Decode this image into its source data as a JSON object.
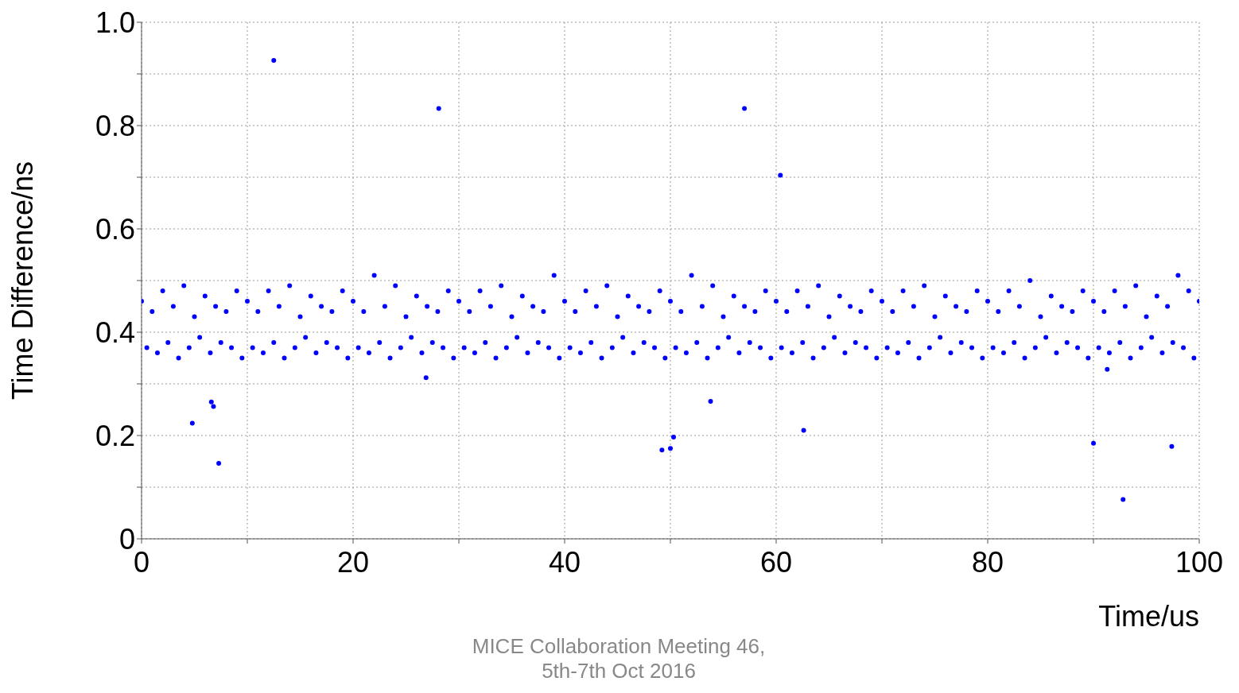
{
  "chart_data": {
    "type": "scatter",
    "xlabel": "Time/us",
    "ylabel": "Time Difference/ns",
    "annotations": [
      "MICE Collaboration Meeting 46, 5th-7th Oct 2016"
    ],
    "xlim": [
      0,
      100
    ],
    "ylim": [
      0,
      1.0
    ],
    "xticks": [
      0,
      {
        "value": 10,
        "label": null
      },
      20,
      {
        "value": 30,
        "label": null
      },
      40,
      {
        "value": 50,
        "label": null
      },
      60,
      {
        "value": 70,
        "label": null
      },
      80,
      {
        "value": 90,
        "label": null
      },
      100
    ],
    "yticks": [
      0,
      {
        "value": 0.1,
        "label": null
      },
      0.2,
      {
        "value": 0.3,
        "label": null
      },
      0.4,
      {
        "value": 0.5,
        "label": null
      },
      0.6,
      {
        "value": 0.7,
        "label": null
      },
      0.8,
      {
        "value": 0.9,
        "label": null
      },
      {
        "value": 1.0,
        "label": "1.0"
      }
    ],
    "grid": true,
    "marker": "circle",
    "series": [
      {
        "color": "#0000ff",
        "x": [
          0,
          1,
          2,
          3,
          4,
          5,
          6,
          7,
          8,
          9,
          10,
          11,
          12,
          13,
          14,
          15,
          16,
          17,
          18,
          19,
          20,
          21,
          22,
          23,
          24,
          25,
          26,
          27,
          28,
          29,
          30,
          31,
          32,
          33,
          34,
          35,
          36,
          37,
          38,
          39,
          40,
          41,
          42,
          43,
          44,
          45,
          46,
          47,
          48,
          49,
          50,
          51,
          52,
          53,
          54,
          55,
          56,
          57,
          58,
          59,
          60,
          61,
          62,
          63,
          64,
          65,
          66,
          67,
          68,
          69,
          70,
          71,
          72,
          73,
          74,
          75,
          76,
          77,
          78,
          79,
          80,
          81,
          82,
          83,
          84,
          85,
          86,
          87,
          88,
          89,
          90,
          91,
          92,
          93,
          94,
          95,
          96,
          97,
          98,
          99,
          100,
          0.5,
          1.5,
          2.5,
          3.5,
          4.5,
          5.5,
          6.5,
          7.5,
          8.5,
          9.5,
          10.5,
          11.5,
          12.5,
          13.5,
          14.5,
          15.5,
          16.5,
          17.5,
          18.5,
          19.5,
          20.5,
          21.5,
          22.5,
          23.5,
          24.5,
          25.5,
          26.5,
          27.5,
          28.5,
          29.5,
          30.5,
          31.5,
          32.5,
          33.5,
          34.5,
          35.5,
          36.5,
          37.5,
          38.5,
          39.5,
          40.5,
          41.5,
          42.5,
          43.5,
          44.5,
          45.5,
          46.5,
          47.5,
          48.5,
          49.5,
          50.5,
          51.5,
          52.5,
          53.5,
          54.5,
          55.5,
          56.5,
          57.5,
          58.5,
          59.5,
          60.5,
          61.5,
          62.5,
          63.5,
          64.5,
          65.5,
          66.5,
          67.5,
          68.5,
          69.5,
          70.5,
          71.5,
          72.5,
          73.5,
          74.5,
          75.5,
          76.5,
          77.5,
          78.5,
          79.5,
          80.5,
          81.5,
          82.5,
          83.5,
          84.5,
          85.5,
          86.5,
          87.5,
          88.5,
          89.5,
          90.5,
          91.5,
          92.5,
          93.5,
          94.5,
          95.5,
          96.5,
          97.5,
          98.5,
          99.5,
          12.5,
          28.1,
          57.0,
          60.4,
          4.8,
          6.6,
          6.8,
          7.3,
          26.9,
          49.2,
          50.0,
          50.3,
          53.8,
          62.6,
          90.0,
          91.3,
          92.8,
          97.4
        ],
        "values": [
          0.46,
          0.44,
          0.48,
          0.45,
          0.49,
          0.43,
          0.47,
          0.45,
          0.44,
          0.48,
          0.46,
          0.44,
          0.48,
          0.45,
          0.49,
          0.43,
          0.47,
          0.45,
          0.44,
          0.48,
          0.46,
          0.44,
          0.51,
          0.45,
          0.49,
          0.43,
          0.47,
          0.45,
          0.44,
          0.48,
          0.46,
          0.44,
          0.48,
          0.45,
          0.49,
          0.43,
          0.47,
          0.45,
          0.44,
          0.51,
          0.46,
          0.44,
          0.48,
          0.45,
          0.49,
          0.43,
          0.47,
          0.45,
          0.44,
          0.48,
          0.46,
          0.44,
          0.51,
          0.45,
          0.49,
          0.43,
          0.47,
          0.45,
          0.44,
          0.48,
          0.46,
          0.44,
          0.48,
          0.45,
          0.49,
          0.43,
          0.47,
          0.45,
          0.44,
          0.48,
          0.46,
          0.44,
          0.48,
          0.45,
          0.49,
          0.43,
          0.47,
          0.45,
          0.44,
          0.48,
          0.46,
          0.44,
          0.48,
          0.45,
          0.5,
          0.43,
          0.47,
          0.45,
          0.44,
          0.48,
          0.46,
          0.44,
          0.48,
          0.45,
          0.49,
          0.43,
          0.47,
          0.45,
          0.51,
          0.48,
          0.46,
          0.37,
          0.36,
          0.38,
          0.35,
          0.37,
          0.39,
          0.36,
          0.38,
          0.37,
          0.35,
          0.37,
          0.36,
          0.38,
          0.35,
          0.37,
          0.39,
          0.36,
          0.38,
          0.37,
          0.35,
          0.37,
          0.36,
          0.38,
          0.35,
          0.37,
          0.39,
          0.36,
          0.38,
          0.37,
          0.35,
          0.37,
          0.36,
          0.38,
          0.35,
          0.37,
          0.39,
          0.36,
          0.38,
          0.37,
          0.35,
          0.37,
          0.36,
          0.38,
          0.35,
          0.37,
          0.39,
          0.36,
          0.38,
          0.37,
          0.35,
          0.37,
          0.36,
          0.38,
          0.35,
          0.37,
          0.39,
          0.36,
          0.38,
          0.37,
          0.35,
          0.37,
          0.36,
          0.38,
          0.35,
          0.37,
          0.39,
          0.36,
          0.38,
          0.37,
          0.35,
          0.37,
          0.36,
          0.38,
          0.35,
          0.37,
          0.39,
          0.36,
          0.38,
          0.37,
          0.35,
          0.37,
          0.36,
          0.38,
          0.35,
          0.37,
          0.39,
          0.36,
          0.38,
          0.37,
          0.35,
          0.37,
          0.36,
          0.38,
          0.35,
          0.37,
          0.39,
          0.36,
          0.38,
          0.37,
          0.35,
          0.926,
          0.833,
          0.833,
          0.704,
          0.224,
          0.265,
          0.256,
          0.146,
          0.312,
          0.172,
          0.175,
          0.197,
          0.266,
          0.21,
          0.185,
          0.328,
          0.076,
          0.179
        ]
      }
    ]
  }
}
